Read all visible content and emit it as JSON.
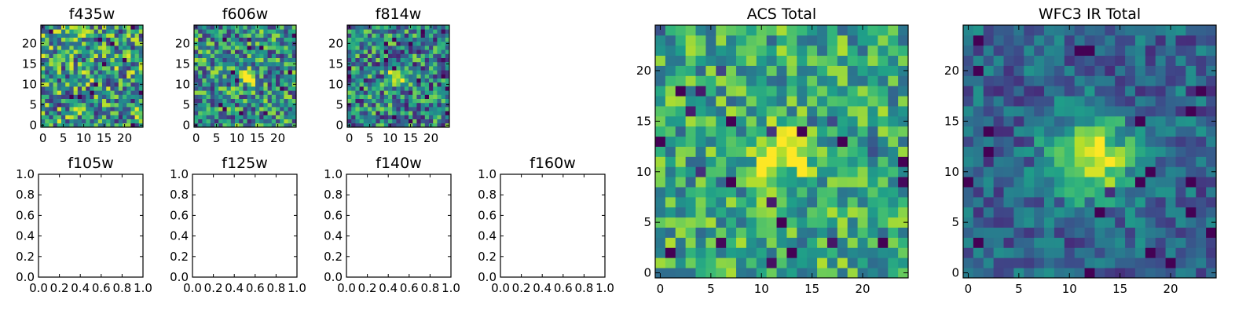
{
  "chart_data": [
    {
      "type": "heatmap",
      "title": "f435w",
      "grid": 25,
      "xlim": [
        -0.5,
        24.5
      ],
      "ylim": [
        -0.5,
        24.5
      ],
      "xticks": [
        0,
        5,
        10,
        15,
        20
      ],
      "yticks": [
        0,
        5,
        10,
        15,
        20
      ],
      "xticklabels": [
        "0",
        "5",
        "10",
        "15",
        "20"
      ],
      "yticklabels": [
        "0",
        "5",
        "10",
        "15",
        "20"
      ],
      "source": {
        "cx": 12,
        "cy": 12,
        "sigma": 2.0,
        "peak": 0.05
      },
      "noise": 0.42,
      "base": 0.55,
      "seed": 11
    },
    {
      "type": "heatmap",
      "title": "f606w",
      "grid": 25,
      "xlim": [
        -0.5,
        24.5
      ],
      "ylim": [
        -0.5,
        24.5
      ],
      "xticks": [
        0,
        5,
        10,
        15,
        20
      ],
      "yticks": [
        0,
        5,
        10,
        15,
        20
      ],
      "xticklabels": [
        "0",
        "5",
        "10",
        "15",
        "20"
      ],
      "yticklabels": [
        "0",
        "5",
        "10",
        "15",
        "20"
      ],
      "source": {
        "cx": 12.5,
        "cy": 12,
        "sigma": 1.4,
        "peak": 0.45
      },
      "noise": 0.38,
      "base": 0.5,
      "seed": 23
    },
    {
      "type": "heatmap",
      "title": "f814w",
      "grid": 25,
      "xlim": [
        -0.5,
        24.5
      ],
      "ylim": [
        -0.5,
        24.5
      ],
      "xticks": [
        0,
        5,
        10,
        15,
        20
      ],
      "yticks": [
        0,
        5,
        10,
        15,
        20
      ],
      "xticklabels": [
        "0",
        "5",
        "10",
        "15",
        "20"
      ],
      "yticklabels": [
        "0",
        "5",
        "10",
        "15",
        "20"
      ],
      "source": {
        "cx": 12,
        "cy": 12,
        "sigma": 1.4,
        "peak": 0.65
      },
      "noise": 0.38,
      "base": 0.45,
      "seed": 37
    },
    {
      "type": "empty",
      "title": "f105w",
      "xlim": [
        0,
        1
      ],
      "ylim": [
        0,
        1
      ],
      "xticklabels": [
        "0.0",
        "0.2",
        "0.4",
        "0.6",
        "0.8",
        "1.0"
      ],
      "yticklabels": [
        "0.0",
        "0.2",
        "0.4",
        "0.6",
        "0.8",
        "1.0"
      ]
    },
    {
      "type": "empty",
      "title": "f125w",
      "xlim": [
        0,
        1
      ],
      "ylim": [
        0,
        1
      ],
      "xticklabels": [
        "0.0",
        "0.2",
        "0.4",
        "0.6",
        "0.8",
        "1.0"
      ],
      "yticklabels": [
        "0.0",
        "0.2",
        "0.4",
        "0.6",
        "0.8",
        "1.0"
      ]
    },
    {
      "type": "empty",
      "title": "f140w",
      "xlim": [
        0,
        1
      ],
      "ylim": [
        0,
        1
      ],
      "xticklabels": [
        "0.0",
        "0.2",
        "0.4",
        "0.6",
        "0.8",
        "1.0"
      ],
      "yticklabels": [
        "0.0",
        "0.2",
        "0.4",
        "0.6",
        "0.8",
        "1.0"
      ]
    },
    {
      "type": "empty",
      "title": "f160w",
      "xlim": [
        0,
        1
      ],
      "ylim": [
        0,
        1
      ],
      "xticklabels": [
        "0.0",
        "0.2",
        "0.4",
        "0.6",
        "0.8",
        "1.0"
      ],
      "yticklabels": [
        "0.0",
        "0.2",
        "0.4",
        "0.6",
        "0.8",
        "1.0"
      ]
    },
    {
      "type": "heatmap",
      "title": "ACS Total",
      "grid": 25,
      "xlim": [
        -0.5,
        24.5
      ],
      "ylim": [
        -0.5,
        24.5
      ],
      "xticks": [
        0,
        5,
        10,
        15,
        20
      ],
      "yticks": [
        0,
        5,
        10,
        15,
        20
      ],
      "xticklabels": [
        "0",
        "5",
        "10",
        "15",
        "20"
      ],
      "yticklabels": [
        "0",
        "5",
        "10",
        "15",
        "20"
      ],
      "source": {
        "cx": 12,
        "cy": 12,
        "sigma": 1.8,
        "peak": 0.55
      },
      "noise": 0.28,
      "base": 0.6,
      "seed": 53
    },
    {
      "type": "heatmap",
      "title": "WFC3 IR Total",
      "grid": 25,
      "xlim": [
        -0.5,
        24.5
      ],
      "ylim": [
        -0.5,
        24.5
      ],
      "xticks": [
        0,
        5,
        10,
        15,
        20
      ],
      "yticks": [
        0,
        5,
        10,
        15,
        20
      ],
      "xticklabels": [
        "0",
        "5",
        "10",
        "15",
        "20"
      ],
      "yticklabels": [
        "0",
        "5",
        "10",
        "15",
        "20"
      ],
      "source": {
        "cx": 12,
        "cy": 11.5,
        "sigma": 2.8,
        "peak": 0.7
      },
      "noise": 0.2,
      "base": 0.32,
      "seed": 71
    }
  ],
  "colormap": [
    "#440154",
    "#482878",
    "#3e4989",
    "#31688e",
    "#26828e",
    "#1f9e89",
    "#35b779",
    "#6ece58",
    "#b5de2b",
    "#fde725"
  ]
}
